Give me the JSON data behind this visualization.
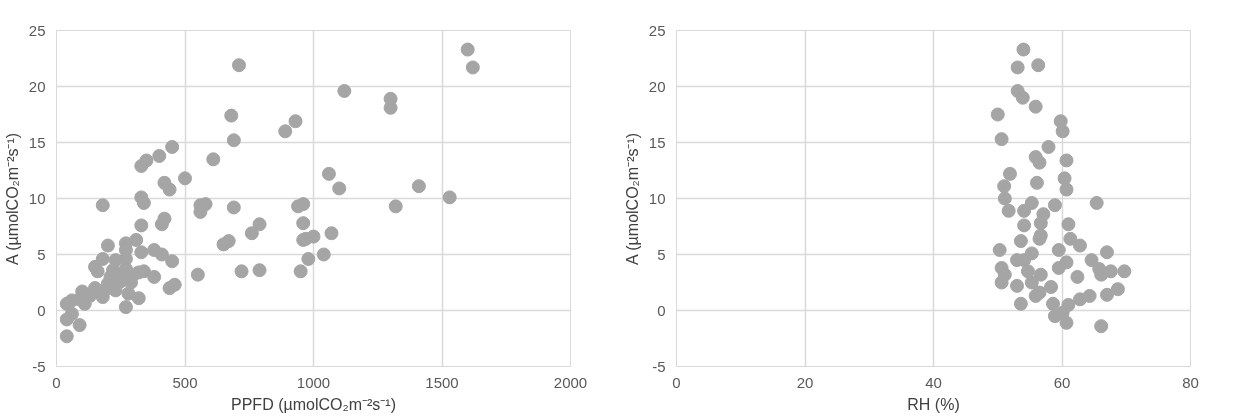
{
  "chart_data": [
    {
      "type": "scatter",
      "xlabel": "PPFD (µmolCO₂m⁻²s⁻¹)",
      "ylabel": "A (µmolCO₂m⁻²s⁻¹)",
      "xlim": [
        0,
        2000
      ],
      "ylim": [
        -5,
        25
      ],
      "xticks": [
        0,
        500,
        1000,
        1500,
        2000
      ],
      "yticks": [
        -5,
        0,
        5,
        10,
        15,
        20,
        25
      ],
      "grid": true,
      "marker": "circle",
      "series": [
        {
          "color": "#a5a5a5",
          "x": [
            1600,
            1620,
            710,
            1120,
            1300,
            1300,
            680,
            930,
            890,
            690,
            450,
            400,
            350,
            330,
            610,
            500,
            1060,
            1410,
            420,
            440,
            1100,
            1530,
            330,
            340,
            180,
            560,
            580,
            690,
            960,
            940,
            1320,
            560,
            420,
            410,
            330,
            790,
            760,
            960,
            1070,
            970,
            650,
            670,
            1000,
            960,
            310,
            270,
            200,
            270,
            380,
            330,
            410,
            450,
            1040,
            980,
            270,
            230,
            180,
            150,
            160,
            220,
            270,
            320,
            340,
            300,
            380,
            210,
            250,
            290,
            550,
            720,
            790,
            950,
            460,
            440,
            200,
            230,
            280,
            320,
            180,
            100,
            90,
            60,
            40,
            110,
            270,
            60,
            40,
            90,
            40,
            200,
            260,
            130,
            150
          ],
          "values": [
            23.3,
            21.7,
            21.9,
            19.6,
            18.9,
            18.1,
            17.4,
            16.9,
            16.0,
            15.2,
            14.6,
            13.8,
            13.4,
            12.9,
            13.5,
            11.8,
            12.2,
            11.1,
            11.4,
            10.8,
            10.9,
            10.1,
            10.1,
            9.6,
            9.4,
            9.4,
            9.5,
            9.2,
            9.5,
            9.3,
            9.3,
            8.8,
            8.2,
            7.7,
            7.6,
            7.7,
            6.9,
            7.8,
            6.9,
            6.4,
            5.9,
            6.2,
            6.6,
            6.3,
            6.3,
            6.0,
            5.8,
            5.4,
            5.4,
            5.2,
            5.0,
            4.4,
            5.0,
            4.6,
            4.6,
            4.5,
            4.6,
            3.9,
            3.5,
            3.6,
            3.7,
            3.4,
            3.5,
            3.2,
            3.0,
            3.0,
            2.6,
            2.5,
            3.2,
            3.5,
            3.6,
            3.5,
            2.3,
            2.0,
            2.0,
            1.8,
            1.5,
            1.1,
            1.2,
            1.7,
            1.0,
            0.9,
            0.6,
            0.6,
            0.3,
            -0.3,
            -0.8,
            -1.3,
            -2.3,
            2.4,
            3.1,
            1.3,
            2.0
          ]
        }
      ]
    },
    {
      "type": "scatter",
      "xlabel": "RH (%)",
      "ylabel": "A (µmolCO₂m⁻²s⁻¹)",
      "xlim": [
        0,
        80
      ],
      "ylim": [
        -5,
        25
      ],
      "xticks": [
        0,
        20,
        40,
        60,
        80
      ],
      "yticks": [
        -5,
        0,
        5,
        10,
        15,
        20,
        25
      ],
      "grid": true,
      "marker": "circle",
      "series": [
        {
          "color": "#a5a5a5",
          "x": [
            54.0,
            53.1,
            56.3,
            53.1,
            53.9,
            55.9,
            50.0,
            59.8,
            60.1,
            50.6,
            57.9,
            55.9,
            56.5,
            60.7,
            51.9,
            51.0,
            60.4,
            56.1,
            60.7,
            51.1,
            51.7,
            65.4,
            58.9,
            55.3,
            54.1,
            61.0,
            56.7,
            56.7,
            54.1,
            50.3,
            53.6,
            56.5,
            61.3,
            62.8,
            59.5,
            67.0,
            64.6,
            50.6,
            50.6,
            54.1,
            55.3,
            60.7,
            62.4,
            66.1,
            67.6,
            69.7,
            65.8,
            68.7,
            67.0,
            64.3,
            62.8,
            61.0,
            53.6,
            53.0,
            55.3,
            56.5,
            58.3,
            58.6,
            58.9,
            60.7,
            66.1,
            54.7,
            56.7,
            53.0,
            55.9,
            51.1,
            59.5,
            60.1,
            57.1
          ],
          "values": [
            23.3,
            21.7,
            21.9,
            19.6,
            19.0,
            18.2,
            17.5,
            16.9,
            16.0,
            15.3,
            14.6,
            13.7,
            13.2,
            13.4,
            12.2,
            11.1,
            11.8,
            11.4,
            10.8,
            10.0,
            8.9,
            9.6,
            9.4,
            9.6,
            8.9,
            7.7,
            7.8,
            6.7,
            7.6,
            5.4,
            6.2,
            6.4,
            6.4,
            5.8,
            5.4,
            5.2,
            4.5,
            3.8,
            2.5,
            4.5,
            5.1,
            4.3,
            3.0,
            3.2,
            3.5,
            3.5,
            3.7,
            1.9,
            1.4,
            1.3,
            1.0,
            0.5,
            0.6,
            2.2,
            2.5,
            1.6,
            2.1,
            0.6,
            -0.5,
            -1.1,
            -1.4,
            3.5,
            3.2,
            4.5,
            1.3,
            3.2,
            3.8,
            -0.2,
            8.6
          ]
        }
      ]
    }
  ]
}
